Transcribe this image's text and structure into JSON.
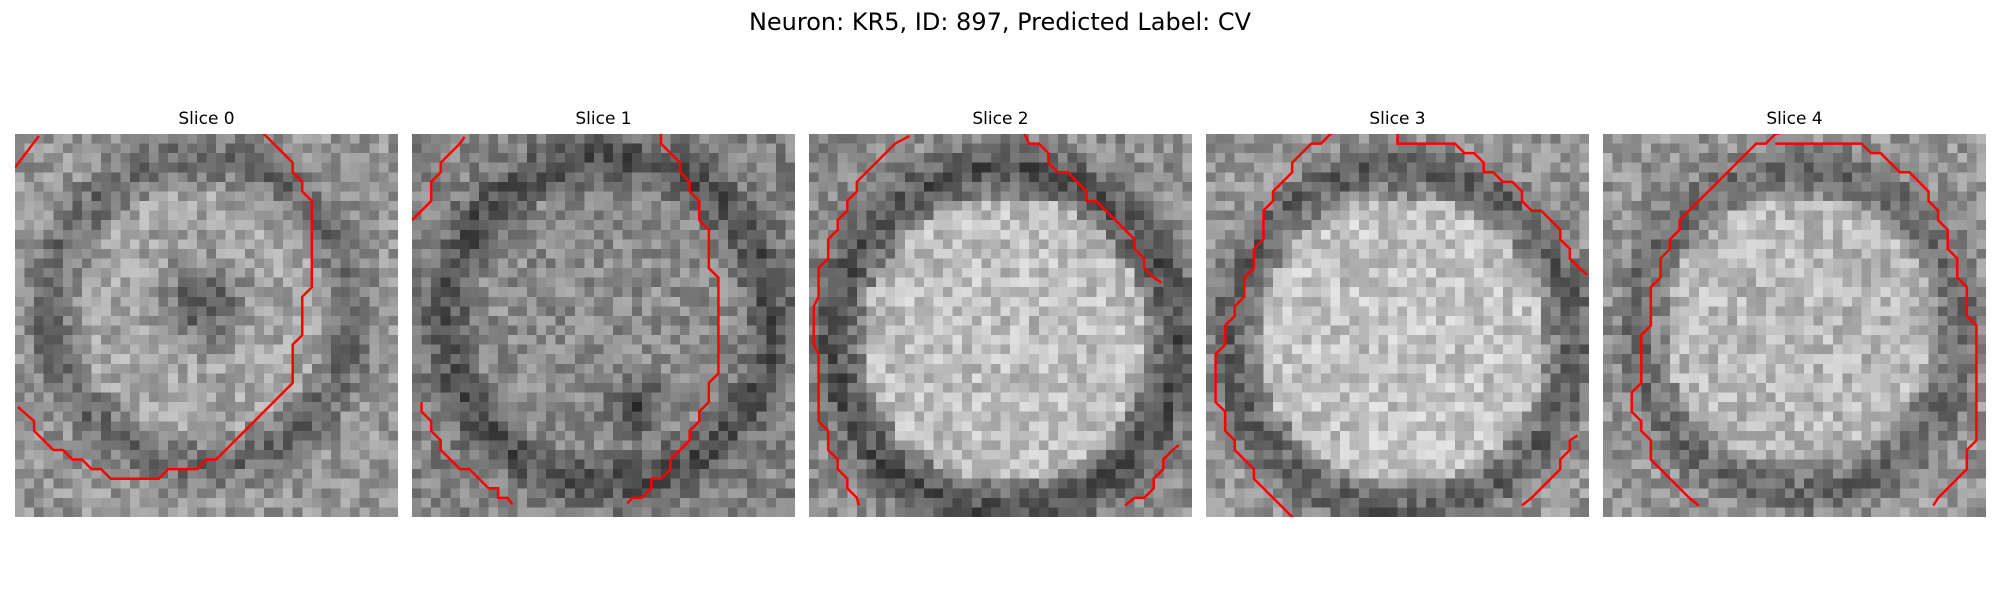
{
  "figure": {
    "title": "Neuron: KR5, ID: 897, Predicted Label: CV"
  },
  "style": {
    "contour_color": "#ff0000",
    "colormap": "gray"
  },
  "slices": [
    {
      "title": "Slice 0",
      "image_description_seed": 11,
      "contours": [
        [
          [
            0,
            3.5
          ],
          [
            2.5,
            0.2
          ]
        ],
        [
          [
            0.3,
            28.5
          ],
          [
            2,
            30
          ],
          [
            2,
            31
          ],
          [
            3,
            32
          ],
          [
            4,
            33
          ],
          [
            5,
            33
          ],
          [
            6,
            34
          ],
          [
            7,
            34
          ],
          [
            8,
            35
          ],
          [
            9,
            35
          ],
          [
            10,
            36
          ],
          [
            15,
            36
          ],
          [
            16,
            35
          ],
          [
            19,
            35
          ],
          [
            20,
            34
          ],
          [
            21,
            34
          ],
          [
            22,
            33
          ],
          [
            23,
            32
          ],
          [
            24,
            31
          ],
          [
            25,
            30
          ],
          [
            26,
            29
          ],
          [
            27,
            28
          ],
          [
            28,
            27
          ],
          [
            29,
            26
          ],
          [
            29,
            22
          ],
          [
            30,
            21
          ],
          [
            30,
            17
          ],
          [
            31,
            16
          ],
          [
            31,
            7
          ],
          [
            30,
            6
          ],
          [
            30,
            5
          ],
          [
            29,
            4
          ],
          [
            29,
            3
          ],
          [
            28,
            2
          ],
          [
            27,
            1
          ],
          [
            26,
            0
          ],
          [
            25.8,
            -0.2
          ]
        ]
      ]
    },
    {
      "title": "Slice 1",
      "image_description_seed": 23,
      "contours": [
        [
          [
            0,
            9
          ],
          [
            1,
            8
          ],
          [
            2,
            7
          ],
          [
            2,
            5
          ],
          [
            3,
            4
          ],
          [
            3,
            3
          ],
          [
            4,
            2
          ],
          [
            5,
            1
          ],
          [
            5.5,
            0.3
          ]
        ],
        [
          [
            1,
            28
          ],
          [
            1,
            29
          ],
          [
            2,
            30
          ],
          [
            2,
            31
          ],
          [
            3,
            32
          ],
          [
            3,
            33
          ],
          [
            4,
            34
          ],
          [
            5,
            35
          ],
          [
            6,
            35
          ],
          [
            7,
            36
          ],
          [
            8,
            37
          ],
          [
            9,
            37
          ],
          [
            9,
            38
          ],
          [
            10,
            38
          ],
          [
            10.5,
            38.7
          ]
        ],
        [
          [
            26,
            0
          ],
          [
            26,
            1
          ],
          [
            27,
            2
          ],
          [
            28,
            3
          ],
          [
            28,
            4
          ],
          [
            29,
            5
          ],
          [
            29,
            6
          ],
          [
            30,
            7
          ],
          [
            30,
            9
          ],
          [
            31,
            10
          ],
          [
            31,
            14
          ],
          [
            32,
            15
          ],
          [
            32,
            25
          ],
          [
            31,
            26
          ],
          [
            31,
            28
          ],
          [
            30,
            29
          ],
          [
            30,
            30
          ],
          [
            29,
            31
          ],
          [
            29,
            32
          ],
          [
            28,
            33
          ],
          [
            27,
            34
          ],
          [
            27,
            35
          ],
          [
            26,
            36
          ],
          [
            25,
            36
          ],
          [
            25,
            37
          ],
          [
            24,
            38
          ],
          [
            23,
            38
          ],
          [
            22.5,
            38.6
          ]
        ]
      ]
    },
    {
      "title": "Slice 2",
      "image_description_seed": 37,
      "contours": [
        [
          [
            10.5,
            0.2
          ],
          [
            9,
            1
          ],
          [
            8,
            2
          ],
          [
            7,
            3
          ],
          [
            6,
            4
          ],
          [
            5,
            5
          ],
          [
            5,
            6
          ],
          [
            4,
            7
          ],
          [
            4,
            8
          ],
          [
            3,
            9
          ],
          [
            3,
            10
          ],
          [
            2,
            11
          ],
          [
            2,
            13
          ],
          [
            1,
            14
          ],
          [
            1,
            17
          ],
          [
            0.5,
            18
          ],
          [
            0.5,
            22
          ],
          [
            1,
            23
          ],
          [
            1,
            30
          ],
          [
            2,
            31
          ],
          [
            2,
            33
          ],
          [
            3,
            34
          ],
          [
            3,
            35
          ],
          [
            4,
            36
          ],
          [
            4,
            37
          ],
          [
            5,
            38
          ],
          [
            5.2,
            38.8
          ]
        ],
        [
          [
            22.5,
            0
          ],
          [
            23,
            1
          ],
          [
            24,
            1
          ],
          [
            25,
            2
          ],
          [
            25,
            3
          ],
          [
            26,
            4
          ],
          [
            27,
            4
          ],
          [
            28,
            5
          ],
          [
            29,
            6
          ],
          [
            29,
            7
          ],
          [
            30,
            7
          ],
          [
            31,
            8
          ],
          [
            32,
            9
          ],
          [
            33,
            10
          ],
          [
            34,
            11
          ],
          [
            34,
            12
          ],
          [
            35,
            13
          ],
          [
            35,
            14
          ],
          [
            36,
            15
          ],
          [
            36.8,
            15.5
          ]
        ],
        [
          [
            33,
            38.8
          ],
          [
            34,
            38
          ],
          [
            35,
            38
          ],
          [
            36,
            37
          ],
          [
            36,
            36
          ],
          [
            37,
            35
          ],
          [
            37,
            34
          ],
          [
            38,
            33
          ],
          [
            38.6,
            32.5
          ]
        ]
      ]
    },
    {
      "title": "Slice 3",
      "image_description_seed": 53,
      "contours": [
        [
          [
            13.5,
            -0.2
          ],
          [
            13,
            0
          ],
          [
            12,
            1
          ],
          [
            11,
            1
          ],
          [
            10,
            2
          ],
          [
            9,
            3
          ],
          [
            9,
            4
          ],
          [
            8,
            5
          ],
          [
            7,
            6
          ],
          [
            7,
            7
          ],
          [
            6,
            8
          ],
          [
            6,
            11
          ],
          [
            5,
            12
          ],
          [
            5,
            14
          ],
          [
            4,
            15
          ],
          [
            4,
            17
          ],
          [
            3,
            18
          ],
          [
            3,
            19
          ],
          [
            2,
            20
          ],
          [
            2,
            22
          ],
          [
            1,
            23
          ],
          [
            1,
            28
          ],
          [
            2,
            29
          ],
          [
            2,
            31
          ],
          [
            3,
            32
          ],
          [
            3,
            33
          ],
          [
            4,
            34
          ],
          [
            5,
            35
          ],
          [
            5,
            36
          ],
          [
            6,
            37
          ],
          [
            7,
            38
          ],
          [
            8,
            39
          ],
          [
            9,
            40
          ],
          [
            10,
            41
          ],
          [
            10,
            42
          ]
        ],
        [
          [
            20,
            0
          ],
          [
            20,
            1
          ],
          [
            26,
            1
          ],
          [
            27,
            2
          ],
          [
            28,
            2
          ],
          [
            29,
            3
          ],
          [
            29,
            4
          ],
          [
            30,
            4
          ],
          [
            31,
            5
          ],
          [
            32,
            5
          ],
          [
            33,
            6
          ],
          [
            33,
            7
          ],
          [
            34,
            8
          ],
          [
            35,
            8
          ],
          [
            36,
            9
          ],
          [
            37,
            10
          ],
          [
            37,
            11
          ],
          [
            38,
            12
          ],
          [
            38,
            13
          ],
          [
            39,
            14
          ],
          [
            39.8,
            14.7
          ]
        ],
        [
          [
            33,
            38.8
          ],
          [
            34,
            38
          ],
          [
            35,
            37
          ],
          [
            36,
            36
          ],
          [
            37,
            35
          ],
          [
            37,
            34
          ],
          [
            38,
            33
          ],
          [
            38,
            32
          ],
          [
            38.8,
            31.5
          ]
        ]
      ]
    },
    {
      "title": "Slice 4",
      "image_description_seed": 71,
      "contours": [
        [
          [
            10,
            38.8
          ],
          [
            9,
            38
          ],
          [
            8,
            37
          ],
          [
            7,
            36
          ],
          [
            6,
            35
          ],
          [
            5,
            34
          ],
          [
            5,
            32
          ],
          [
            4,
            31
          ],
          [
            4,
            30
          ],
          [
            3,
            29
          ],
          [
            3,
            27
          ],
          [
            4,
            26
          ],
          [
            4,
            21
          ],
          [
            5,
            20
          ],
          [
            5,
            16
          ],
          [
            6,
            15
          ],
          [
            6,
            13
          ],
          [
            7,
            12
          ],
          [
            7,
            11
          ],
          [
            8,
            10
          ],
          [
            8,
            9
          ],
          [
            9,
            8
          ],
          [
            10,
            7
          ],
          [
            11,
            6
          ],
          [
            12,
            5
          ],
          [
            13,
            4
          ],
          [
            14,
            3
          ],
          [
            15,
            2
          ],
          [
            16,
            1
          ],
          [
            17,
            1
          ],
          [
            18,
            0
          ],
          [
            19,
            -0.2
          ]
        ],
        [
          [
            18,
            1
          ],
          [
            27,
            1
          ],
          [
            28,
            2
          ],
          [
            29,
            2
          ],
          [
            30,
            3
          ],
          [
            31,
            4
          ],
          [
            32,
            4
          ],
          [
            33,
            5
          ],
          [
            34,
            6
          ],
          [
            34,
            7
          ],
          [
            35,
            8
          ],
          [
            35,
            9
          ],
          [
            36,
            10
          ],
          [
            36,
            12
          ],
          [
            37,
            13
          ],
          [
            37,
            15
          ],
          [
            38,
            16
          ],
          [
            38,
            19
          ],
          [
            39,
            20
          ],
          [
            39,
            32
          ],
          [
            38,
            33
          ],
          [
            38,
            35
          ],
          [
            37,
            36
          ],
          [
            36,
            37
          ],
          [
            35,
            38
          ],
          [
            34.5,
            38.8
          ]
        ]
      ]
    }
  ]
}
